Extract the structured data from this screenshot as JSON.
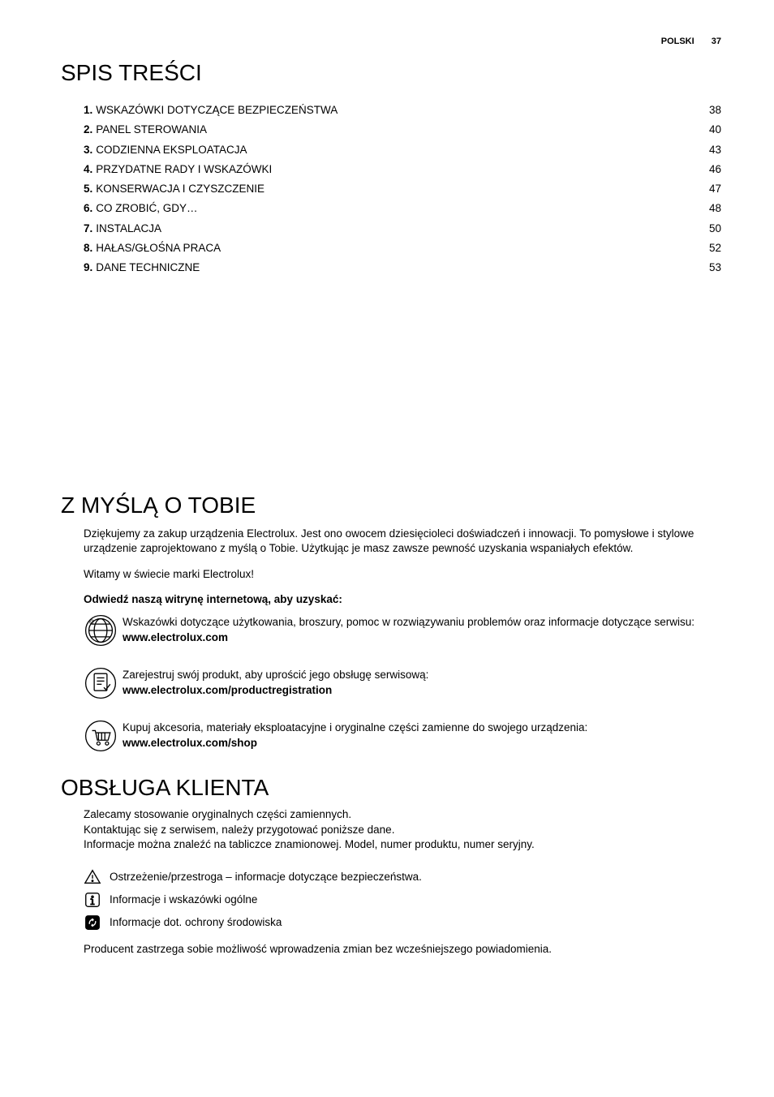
{
  "header": {
    "lang": "POLSKI",
    "page": "37"
  },
  "toc": {
    "title": "SPIS TREŚCI",
    "items": [
      {
        "num": "1.",
        "label": "WSKAZÓWKI DOTYCZĄCE BEZPIECZEŃSTWA",
        "page": "38"
      },
      {
        "num": "2.",
        "label": "PANEL STEROWANIA",
        "page": "40"
      },
      {
        "num": "3.",
        "label": "CODZIENNA EKSPLOATACJA",
        "page": "43"
      },
      {
        "num": "4.",
        "label": "PRZYDATNE RADY I WSKAZÓWKI",
        "page": "46"
      },
      {
        "num": "5.",
        "label": "KONSERWACJA I CZYSZCZENIE",
        "page": "47"
      },
      {
        "num": "6.",
        "label": "CO ZROBIĆ, GDY…",
        "page": "48"
      },
      {
        "num": "7.",
        "label": "INSTALACJA",
        "page": "50"
      },
      {
        "num": "8.",
        "label": "HAŁAS/GŁOŚNA PRACA",
        "page": "52"
      },
      {
        "num": "9.",
        "label": "DANE TECHNICZNE",
        "page": "53"
      }
    ]
  },
  "thinking": {
    "title": "Z MYŚLĄ O TOBIE",
    "intro": "Dziękujemy za zakup urządzenia Electrolux. Jest ono owocem dziesięcioleci doświadczeń i innowacji. To pomysłowe i stylowe urządzenie zaprojektowano z myślą o Tobie. Użytkując je masz zawsze pewność uzyskania wspaniałych efektów.",
    "welcome": "Witamy w świecie marki Electrolux!",
    "visit": "Odwiedź naszą witrynę internetową, aby uzyskać:",
    "blocks": [
      {
        "text": "Wskazówki dotyczące użytkowania, broszury, pomoc w rozwiązywaniu problemów oraz informacje dotyczące serwisu:",
        "url": "www.electrolux.com"
      },
      {
        "text": "Zarejestruj swój produkt, aby uprościć jego obsługę serwisową:",
        "url": "www.electrolux.com/productregistration"
      },
      {
        "text": "Kupuj akcesoria, materiały eksploatacyjne i oryginalne części zamienne do swojego urządzenia:",
        "url": "www.electrolux.com/shop"
      }
    ]
  },
  "service": {
    "title": "OBSŁUGA KLIENTA",
    "p1": "Zalecamy stosowanie oryginalnych części zamiennych.",
    "p2": "Kontaktując się z serwisem, należy przygotować poniższe dane.",
    "p3": "Informacje można znaleźć na tabliczce znamionowej. Model, numer produktu, numer seryjny.",
    "notes": [
      "Ostrzeżenie/przestroga – informacje dotyczące bezpieczeństwa.",
      "Informacje i wskazówki ogólne",
      "Informacje dot. ochrony środowiska"
    ],
    "footer": "Producent zastrzega sobie możliwość wprowadzenia zmian bez wcześniejszego powiadomienia."
  },
  "style": {
    "text_color": "#000000",
    "bg_color": "#ffffff",
    "body_fontsize": 13.5,
    "h1_fontsize": 28,
    "icon_stroke": "#000000"
  }
}
